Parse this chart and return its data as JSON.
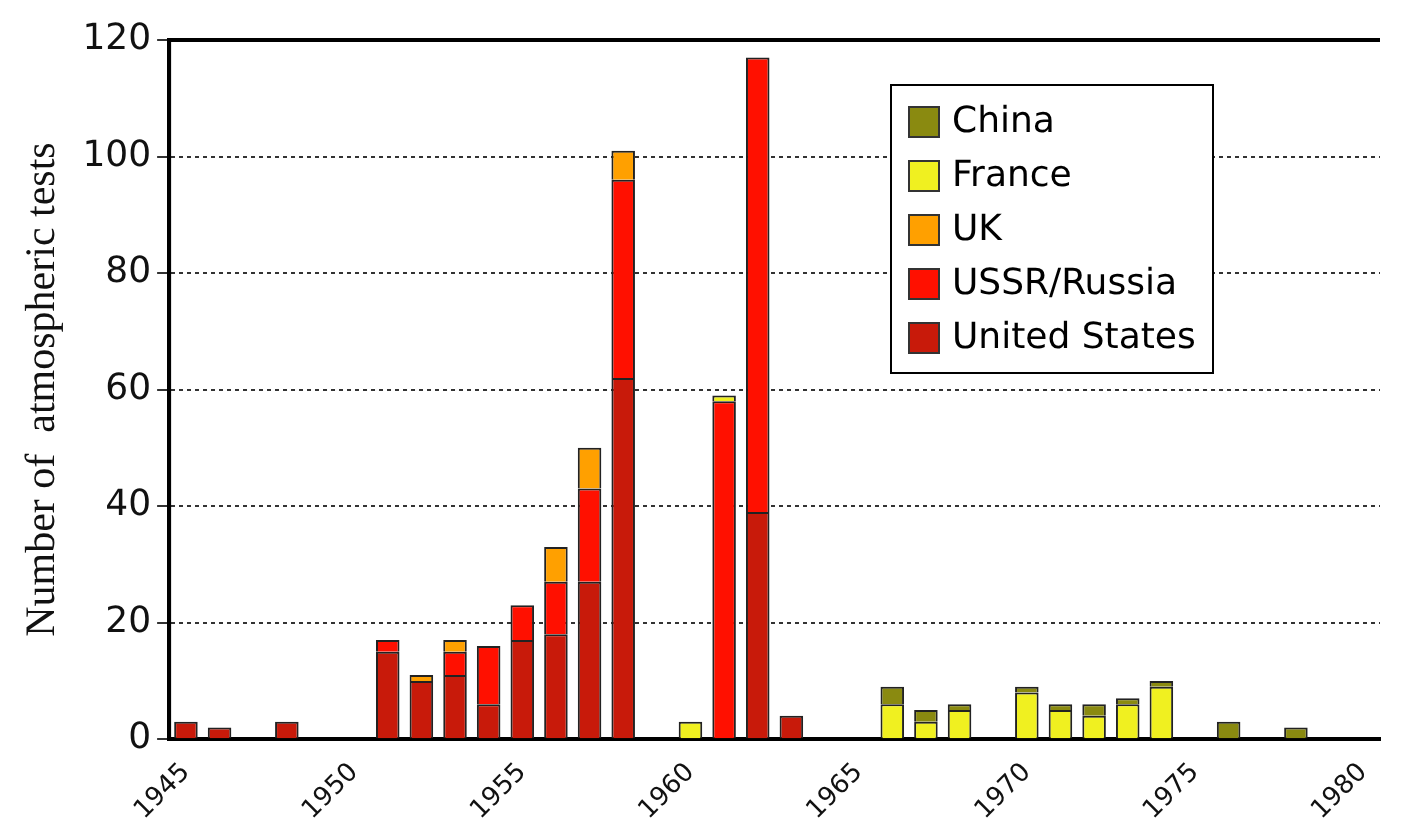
{
  "chart_data": {
    "type": "bar",
    "stacked": true,
    "ylabel": "Number of  atmospheric tests",
    "categories": [
      "1945",
      null,
      null,
      null,
      null,
      "1950",
      null,
      null,
      null,
      null,
      "1955",
      null,
      null,
      null,
      null,
      "1960",
      null,
      null,
      null,
      null,
      "1965",
      null,
      null,
      null,
      null,
      "1970",
      null,
      null,
      null,
      null,
      "1975",
      null,
      null,
      null,
      null,
      "1980"
    ],
    "series": [
      {
        "name": "United States",
        "color": "#c81a0a",
        "values": [
          3,
          2,
          0,
          3,
          0,
          0,
          15,
          10,
          11,
          6,
          17,
          18,
          27,
          62,
          0,
          0,
          0,
          39,
          4,
          0,
          0,
          0,
          0,
          0,
          0,
          0,
          0,
          0,
          0,
          0,
          0,
          0,
          0,
          0,
          0,
          0
        ]
      },
      {
        "name": "USSR/Russia",
        "color": "#ff1000",
        "values": [
          0,
          0,
          0,
          0,
          0,
          0,
          2,
          0,
          4,
          10,
          6,
          9,
          16,
          34,
          0,
          0,
          58,
          78,
          0,
          0,
          0,
          0,
          0,
          0,
          0,
          0,
          0,
          0,
          0,
          0,
          0,
          0,
          0,
          0,
          0,
          0
        ]
      },
      {
        "name": "UK",
        "color": "#ffa000",
        "values": [
          0,
          0,
          0,
          0,
          0,
          0,
          0,
          1,
          2,
          0,
          0,
          6,
          7,
          5,
          0,
          0,
          0,
          0,
          0,
          0,
          0,
          0,
          0,
          0,
          0,
          0,
          0,
          0,
          0,
          0,
          0,
          0,
          0,
          0,
          0,
          0
        ]
      },
      {
        "name": "France",
        "color": "#f0f020",
        "values": [
          0,
          0,
          0,
          0,
          0,
          0,
          0,
          0,
          0,
          0,
          0,
          0,
          0,
          0,
          0,
          3,
          1,
          0,
          0,
          0,
          0,
          6,
          3,
          5,
          0,
          8,
          5,
          4,
          6,
          9,
          0,
          0,
          0,
          0,
          0,
          0
        ]
      },
      {
        "name": "China",
        "color": "#8a8a10",
        "values": [
          0,
          0,
          0,
          0,
          0,
          0,
          0,
          0,
          0,
          0,
          0,
          0,
          0,
          0,
          0,
          0,
          0,
          0,
          0,
          0,
          0,
          3,
          2,
          1,
          0,
          1,
          1,
          2,
          1,
          1,
          0,
          3,
          0,
          2,
          0,
          0
        ]
      }
    ],
    "ylim": [
      0,
      120
    ],
    "yticks": [
      0,
      20,
      40,
      60,
      80,
      100,
      120
    ],
    "grid": "y",
    "legend": "top right"
  }
}
